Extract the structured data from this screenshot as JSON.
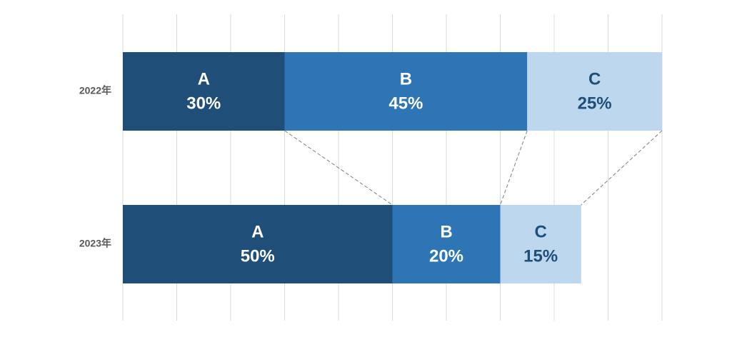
{
  "chart_data": {
    "type": "stacked-bar-horizontal",
    "categories": [
      "2022年",
      "2023年"
    ],
    "series": [
      {
        "name": "A",
        "color": "#1f4e79",
        "text_color": "#ffffff",
        "values": [
          30,
          50
        ],
        "value_labels": [
          "30%",
          "50%"
        ]
      },
      {
        "name": "B",
        "color": "#2e75b6",
        "text_color": "#ffffff",
        "values": [
          45,
          20
        ],
        "value_labels": [
          "45%",
          "20%"
        ]
      },
      {
        "name": "C",
        "color": "#bdd7ee",
        "text_color": "#1f4e79",
        "values": [
          25,
          15
        ],
        "value_labels": [
          "25%",
          "15%"
        ]
      }
    ],
    "xlim": [
      0,
      100
    ],
    "xticks": [
      0,
      10,
      20,
      30,
      40,
      50,
      60,
      70,
      80,
      90,
      100
    ],
    "grid": true,
    "connectors": true
  }
}
